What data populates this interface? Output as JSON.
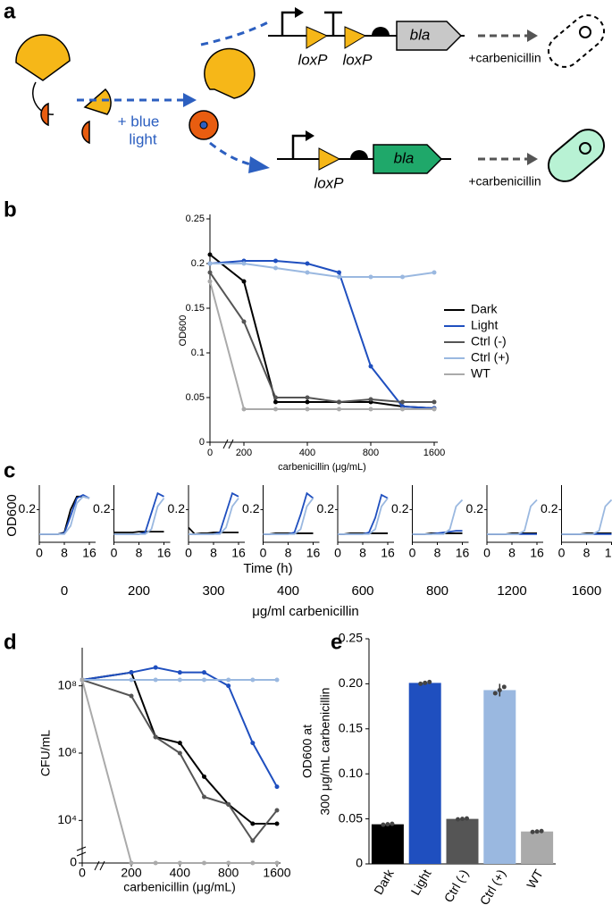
{
  "panel_labels": [
    "a",
    "b",
    "c",
    "d",
    "e"
  ],
  "diagram": {
    "light_label": [
      "+ blue",
      "light"
    ],
    "top": {
      "sites": [
        "loxP",
        "loxP"
      ],
      "gene": "bla",
      "drug": "+carbenicillin"
    },
    "bottom": {
      "sites": [
        "loxP"
      ],
      "gene": "bla",
      "drug": "+carbenicillin"
    }
  },
  "chart_data": [
    {
      "type": "line",
      "xlabel": "carbenicillin (μg/mL)",
      "ylabel": "OD600",
      "categories": [
        "0",
        "200",
        null,
        "400",
        null,
        "800",
        null,
        "1600"
      ],
      "ylim": [
        0,
        0.25
      ],
      "yticks": [
        0,
        0.05,
        0.1,
        0.15,
        0.2,
        0.25
      ],
      "legend": "right",
      "series": [
        {
          "name": "Dark",
          "color": "#000000",
          "values": [
            0.21,
            0.18,
            0.045,
            0.045,
            0.045,
            0.045,
            0.04,
            0.038
          ]
        },
        {
          "name": "Light",
          "color": "#1f4fbf",
          "values": [
            0.2,
            0.203,
            0.203,
            0.2,
            0.19,
            0.085,
            0.04,
            0.038
          ]
        },
        {
          "name": "Ctrl (-)",
          "color": "#555555",
          "values": [
            0.19,
            0.135,
            0.05,
            0.05,
            0.045,
            0.048,
            0.045,
            0.045
          ]
        },
        {
          "name": "Ctrl (+)",
          "color": "#9ab8e0",
          "values": [
            0.2,
            0.2,
            0.195,
            0.19,
            0.185,
            0.185,
            0.185,
            0.19
          ]
        },
        {
          "name": "WT",
          "color": "#aaaaaa",
          "values": [
            0.18,
            0.037,
            0.037,
            0.037,
            0.037,
            0.037,
            0.037,
            0.037
          ]
        }
      ]
    },
    {
      "type": "multiples",
      "xlabel": "Time (h)",
      "ylabel": "OD600",
      "subtitle": "μg/ml carbenicillin",
      "x": [
        0,
        2,
        4,
        6,
        8,
        10,
        12,
        14,
        16
      ],
      "xlim": [
        0,
        18
      ],
      "xticks": [
        0,
        8,
        16
      ],
      "ylim": [
        0,
        0.35
      ],
      "yticks": [
        0.2
      ],
      "panels": [
        {
          "title": "0",
          "series": [
            {
              "color": "#000000",
              "values": [
                0.05,
                0.05,
                0.05,
                0.05,
                0.06,
                0.2,
                0.28,
                0.28,
                0.27
              ]
            },
            {
              "color": "#1f4fbf",
              "values": [
                0.05,
                0.05,
                0.05,
                0.05,
                0.055,
                0.16,
                0.27,
                0.29,
                0.27
              ]
            },
            {
              "color": "#9ab8e0",
              "values": [
                0.05,
                0.05,
                0.05,
                0.05,
                0.05,
                0.1,
                0.24,
                0.28,
                0.27
              ]
            }
          ]
        },
        {
          "title": "200",
          "series": [
            {
              "color": "#000000",
              "values": [
                0.06,
                0.06,
                0.06,
                0.06,
                0.065,
                0.065,
                0.065,
                0.065,
                0.065
              ]
            },
            {
              "color": "#1f4fbf",
              "values": [
                0.05,
                0.05,
                0.05,
                0.05,
                0.05,
                0.06,
                0.18,
                0.3,
                0.28
              ]
            },
            {
              "color": "#9ab8e0",
              "values": [
                0.05,
                0.05,
                0.05,
                0.05,
                0.05,
                0.05,
                0.08,
                0.22,
                0.27
              ]
            }
          ]
        },
        {
          "title": "300",
          "series": [
            {
              "color": "#000000",
              "values": [
                0.09,
                0.05,
                0.055,
                0.055,
                0.06,
                0.06,
                0.06,
                0.06,
                0.06
              ]
            },
            {
              "color": "#1f4fbf",
              "values": [
                0.05,
                0.05,
                0.05,
                0.05,
                0.05,
                0.06,
                0.18,
                0.3,
                0.28
              ]
            },
            {
              "color": "#9ab8e0",
              "values": [
                0.05,
                0.05,
                0.05,
                0.05,
                0.05,
                0.05,
                0.09,
                0.22,
                0.27
              ]
            }
          ]
        },
        {
          "title": "400",
          "series": [
            {
              "color": "#000000",
              "values": [
                0.05,
                0.05,
                0.055,
                0.055,
                0.055,
                0.055,
                0.055,
                0.055,
                0.055
              ]
            },
            {
              "color": "#1f4fbf",
              "values": [
                0.05,
                0.05,
                0.05,
                0.05,
                0.05,
                0.06,
                0.17,
                0.3,
                0.27
              ]
            },
            {
              "color": "#9ab8e0",
              "values": [
                0.05,
                0.05,
                0.05,
                0.05,
                0.05,
                0.05,
                0.08,
                0.22,
                0.27
              ]
            }
          ]
        },
        {
          "title": "600",
          "series": [
            {
              "color": "#000000",
              "values": [
                0.05,
                0.05,
                0.055,
                0.055,
                0.055,
                0.055,
                0.055,
                0.055,
                0.055
              ]
            },
            {
              "color": "#1f4fbf",
              "values": [
                0.05,
                0.05,
                0.05,
                0.05,
                0.05,
                0.06,
                0.15,
                0.29,
                0.27
              ]
            },
            {
              "color": "#9ab8e0",
              "values": [
                0.05,
                0.05,
                0.05,
                0.05,
                0.05,
                0.05,
                0.08,
                0.22,
                0.27
              ]
            }
          ]
        },
        {
          "title": "800",
          "series": [
            {
              "color": "#000000",
              "values": [
                0.05,
                0.05,
                0.05,
                0.055,
                0.055,
                0.055,
                0.055,
                0.055,
                0.055
              ]
            },
            {
              "color": "#1f4fbf",
              "values": [
                0.05,
                0.05,
                0.05,
                0.05,
                0.055,
                0.06,
                0.065,
                0.07,
                0.07
              ]
            },
            {
              "color": "#9ab8e0",
              "values": [
                0.05,
                0.05,
                0.05,
                0.05,
                0.05,
                0.05,
                0.08,
                0.22,
                0.26
              ]
            }
          ]
        },
        {
          "title": "1200",
          "series": [
            {
              "color": "#000000",
              "values": [
                0.05,
                0.05,
                0.05,
                0.05,
                0.055,
                0.055,
                0.055,
                0.055,
                0.055
              ]
            },
            {
              "color": "#1f4fbf",
              "values": [
                0.05,
                0.05,
                0.05,
                0.05,
                0.05,
                0.05,
                0.05,
                0.05,
                0.05
              ]
            },
            {
              "color": "#9ab8e0",
              "values": [
                0.05,
                0.05,
                0.05,
                0.05,
                0.05,
                0.05,
                0.07,
                0.22,
                0.26
              ]
            }
          ]
        },
        {
          "title": "1600",
          "series": [
            {
              "color": "#000000",
              "values": [
                0.05,
                0.05,
                0.05,
                0.05,
                0.055,
                0.055,
                0.055,
                0.055,
                0.055
              ]
            },
            {
              "color": "#1f4fbf",
              "values": [
                0.05,
                0.05,
                0.05,
                0.05,
                0.05,
                0.05,
                0.05,
                0.05,
                0.05
              ]
            },
            {
              "color": "#9ab8e0",
              "values": [
                0.05,
                0.05,
                0.05,
                0.05,
                0.05,
                0.05,
                0.07,
                0.22,
                0.26
              ]
            }
          ]
        }
      ]
    },
    {
      "type": "line",
      "xlabel": "carbenicillin (μg/mL)",
      "ylabel": "CFU/mL",
      "log": true,
      "categories": [
        "0",
        "200",
        null,
        "400",
        null,
        "800",
        null,
        "1600"
      ],
      "ylim": [
        1000,
        1000000000
      ],
      "yticks": [
        0,
        {
          "value": 10000,
          "label": "10⁴"
        },
        {
          "value": 1000000,
          "label": "10⁶"
        },
        {
          "value": 100000000,
          "label": "10⁸"
        }
      ],
      "series": [
        {
          "name": "Dark",
          "color": "#000000",
          "values": [
            150000000,
            250000000,
            3000000,
            2000000,
            200000,
            30000,
            8000,
            8000
          ]
        },
        {
          "name": "Light",
          "color": "#1f4fbf",
          "values": [
            150000000,
            250000000,
            350000000,
            250000000,
            250000000,
            100000000,
            2000000,
            100000
          ]
        },
        {
          "name": "Ctrl (-)",
          "color": "#555555",
          "values": [
            150000000,
            50000000,
            3000000,
            1000000,
            50000,
            30000,
            2500,
            20000
          ]
        },
        {
          "name": "Ctrl (+)",
          "color": "#9ab8e0",
          "values": [
            150000000,
            150000000,
            150000000,
            150000000,
            150000000,
            150000000,
            150000000,
            150000000
          ]
        },
        {
          "name": "WT",
          "color": "#aaaaaa",
          "values": [
            150000000,
            0,
            0,
            0,
            0,
            0,
            0,
            0
          ]
        }
      ]
    },
    {
      "type": "bar",
      "ylabel": [
        "OD600 at",
        "300 μg/mL carbenicillin"
      ],
      "categories": [
        "Dark",
        "Light",
        "Ctrl (-)",
        "Ctrl (+)",
        "WT"
      ],
      "values": [
        0.044,
        0.201,
        0.05,
        0.193,
        0.036
      ],
      "errors": [
        0.001,
        0.002,
        0.001,
        0.007,
        0.001
      ],
      "colors": [
        "#000000",
        "#1f4fbf",
        "#555555",
        "#9ab8e0",
        "#aaaaaa"
      ],
      "ylim": [
        0,
        0.25
      ],
      "yticks": [
        0,
        0.05,
        {
          "value": 0.1,
          "label": "0.10"
        },
        0.15,
        {
          "value": 0.2,
          "label": "0.20"
        },
        0.25
      ]
    }
  ]
}
